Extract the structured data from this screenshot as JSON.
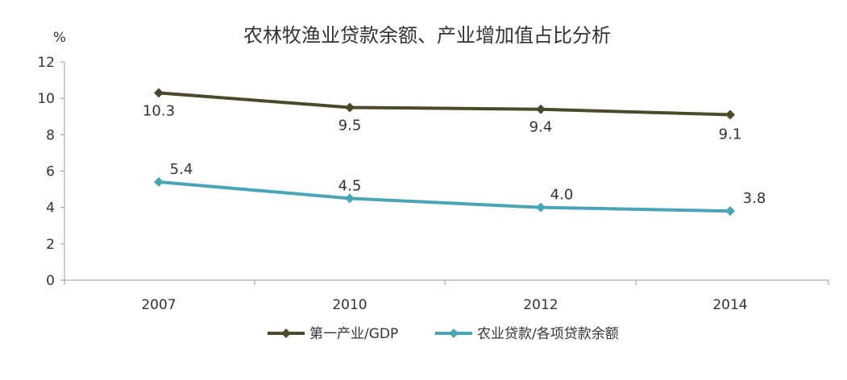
{
  "chart_data": {
    "type": "line",
    "title": "农林牧渔业贷款余额、产业增加值占比分析",
    "y_unit": "%",
    "categories": [
      "2007",
      "2010",
      "2012",
      "2014"
    ],
    "ylim": [
      0,
      12
    ],
    "yticks": [
      "0",
      "2",
      "4",
      "6",
      "8",
      "10",
      "12"
    ],
    "grid": false,
    "legend_position": "bottom",
    "series": [
      {
        "name": "第一产业/GDP",
        "values": [
          10.3,
          9.5,
          9.4,
          9.1
        ],
        "labels": [
          "10.3",
          "9.5",
          "9.4",
          "9.1"
        ],
        "color": "#4a4a2a",
        "marker": "diamond"
      },
      {
        "name": "农业贷款/各项贷款余额",
        "values": [
          5.4,
          4.5,
          4.0,
          3.8
        ],
        "labels": [
          "5.4",
          "4.5",
          "4.0",
          "3.8"
        ],
        "color": "#4aa6b6",
        "marker": "diamond"
      }
    ]
  }
}
